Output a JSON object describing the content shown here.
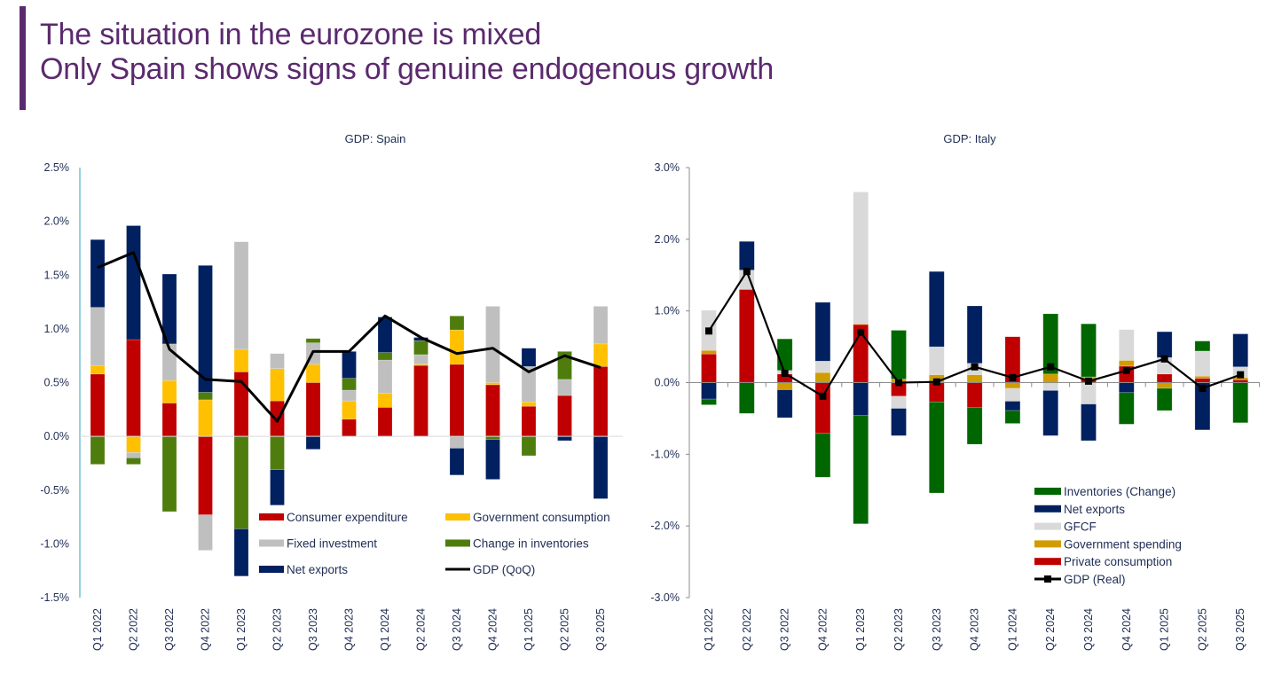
{
  "header": {
    "title_line1": "The situation in the eurozone is mixed",
    "title_line2": "Only Spain shows signs of genuine endogenous growth",
    "accent_color": "#5b2a6e"
  },
  "chart_data": [
    {
      "type": "bar",
      "stacked": true,
      "title": "GDP: Spain",
      "xlabel": "",
      "ylabel": "",
      "ylim": [
        -1.5,
        2.5
      ],
      "yticks": [
        "-1.5%",
        "-1.0%",
        "-0.5%",
        "0.0%",
        "0.5%",
        "1.0%",
        "1.5%",
        "2.0%",
        "2.5%"
      ],
      "ytick_values": [
        -1.5,
        -1.0,
        -0.5,
        0.0,
        0.5,
        1.0,
        1.5,
        2.0,
        2.5
      ],
      "grid": false,
      "legend_position": "bottom-right",
      "categories": [
        "Q1 2022",
        "Q2 2022",
        "Q3 2022",
        "Q4 2022",
        "Q1 2023",
        "Q2 2023",
        "Q3 2023",
        "Q4 2023",
        "Q1 2024",
        "Q2 2024",
        "Q3 2024",
        "Q4 2024",
        "Q1 2025",
        "Q2 2025",
        "Q3 2025"
      ],
      "series": [
        {
          "name": "Consumer expenditure",
          "color": "#c00000",
          "values": [
            0.58,
            0.9,
            0.31,
            -0.73,
            0.6,
            0.33,
            0.5,
            0.16,
            0.27,
            0.66,
            0.67,
            0.48,
            0.28,
            0.38,
            0.65
          ]
        },
        {
          "name": "Government consumption",
          "color": "#ffc000",
          "values": [
            0.08,
            -0.15,
            0.21,
            0.34,
            0.21,
            0.3,
            0.17,
            0.17,
            0.13,
            0.01,
            0.32,
            0.02,
            0.04,
            0.0,
            0.21
          ]
        },
        {
          "name": "Fixed investment",
          "color": "#bfbfbf",
          "values": [
            0.54,
            -0.05,
            0.34,
            -0.33,
            1.0,
            0.14,
            0.2,
            0.1,
            0.31,
            0.09,
            -0.11,
            0.71,
            0.33,
            0.15,
            0.35
          ]
        },
        {
          "name": "Change in inventories",
          "color": "#4e7d0e",
          "values": [
            -0.26,
            -0.06,
            -0.7,
            0.07,
            -0.86,
            -0.31,
            0.04,
            0.11,
            0.07,
            0.13,
            0.13,
            -0.03,
            -0.18,
            0.26,
            0.0
          ]
        },
        {
          "name": "Net exports",
          "color": "#002060",
          "values": [
            0.63,
            1.06,
            0.65,
            1.18,
            -0.44,
            -0.33,
            -0.12,
            0.25,
            0.33,
            0.03,
            -0.25,
            -0.37,
            0.17,
            -0.04,
            -0.58
          ]
        }
      ],
      "line": {
        "name": "GDP (QoQ)",
        "color": "#000000",
        "values": [
          1.57,
          1.71,
          0.81,
          0.53,
          0.51,
          0.14,
          0.79,
          0.79,
          1.12,
          0.92,
          0.77,
          0.82,
          0.6,
          0.75,
          0.64
        ]
      },
      "legend": [
        "Consumer expenditure",
        "Government consumption",
        "Fixed investment",
        "Change in inventories",
        "Net exports",
        "GDP (QoQ)"
      ]
    },
    {
      "type": "bar",
      "stacked": true,
      "title": "GDP: Italy",
      "xlabel": "",
      "ylabel": "",
      "ylim": [
        -3.0,
        3.0
      ],
      "yticks": [
        "-3.0%",
        "-2.0%",
        "-1.0%",
        "0.0%",
        "1.0%",
        "2.0%",
        "3.0%"
      ],
      "ytick_values": [
        -3.0,
        -2.0,
        -1.0,
        0.0,
        1.0,
        2.0,
        3.0
      ],
      "grid": false,
      "legend_position": "bottom-right",
      "categories": [
        "Q1 2022",
        "Q2 2022",
        "Q3 2022",
        "Q4 2022",
        "Q1 2023",
        "Q2 2023",
        "Q3 2023",
        "Q4 2023",
        "Q1 2024",
        "Q2 2024",
        "Q3 2024",
        "Q4 2024",
        "Q1 2025",
        "Q2 2025",
        "Q3 2025"
      ],
      "series": [
        {
          "name": "Private consumption",
          "color": "#c00000",
          "values": [
            0.4,
            1.3,
            0.12,
            -0.71,
            0.81,
            -0.19,
            -0.27,
            -0.35,
            0.64,
            0.0,
            0.05,
            0.23,
            0.12,
            0.06,
            0.04
          ]
        },
        {
          "name": "Government spending",
          "color": "#d09c00",
          "values": [
            0.05,
            0.0,
            -0.1,
            0.14,
            0.01,
            0.05,
            0.11,
            0.11,
            -0.08,
            0.12,
            0.03,
            0.08,
            -0.08,
            0.03,
            0.03
          ]
        },
        {
          "name": "GFCF",
          "color": "#d9d9d9",
          "values": [
            0.56,
            0.27,
            0.05,
            0.16,
            1.84,
            -0.17,
            0.39,
            0.16,
            -0.18,
            -0.11,
            -0.3,
            0.43,
            0.23,
            0.35,
            0.15
          ]
        },
        {
          "name": "Net exports",
          "color": "#002060",
          "values": [
            -0.23,
            0.4,
            -0.39,
            0.82,
            -0.46,
            -0.38,
            1.05,
            0.8,
            -0.13,
            -0.63,
            -0.51,
            -0.14,
            0.36,
            -0.66,
            0.46
          ]
        },
        {
          "name": "Inventories (Change)",
          "color": "#006600",
          "values": [
            -0.08,
            -0.43,
            0.44,
            -0.61,
            -1.51,
            0.68,
            -1.27,
            -0.51,
            -0.18,
            0.84,
            0.74,
            -0.44,
            -0.31,
            0.14,
            -0.56
          ]
        }
      ],
      "line": {
        "name": "GDP (Real)",
        "color": "#000000",
        "values": [
          0.72,
          1.55,
          0.13,
          -0.19,
          0.7,
          0.0,
          0.01,
          0.22,
          0.07,
          0.22,
          0.02,
          0.17,
          0.33,
          -0.08,
          0.11
        ]
      },
      "legend": [
        "Inventories (Change)",
        "Net exports",
        "GFCF",
        "Government spending",
        "Private consumption",
        "GDP (Real)"
      ]
    }
  ]
}
